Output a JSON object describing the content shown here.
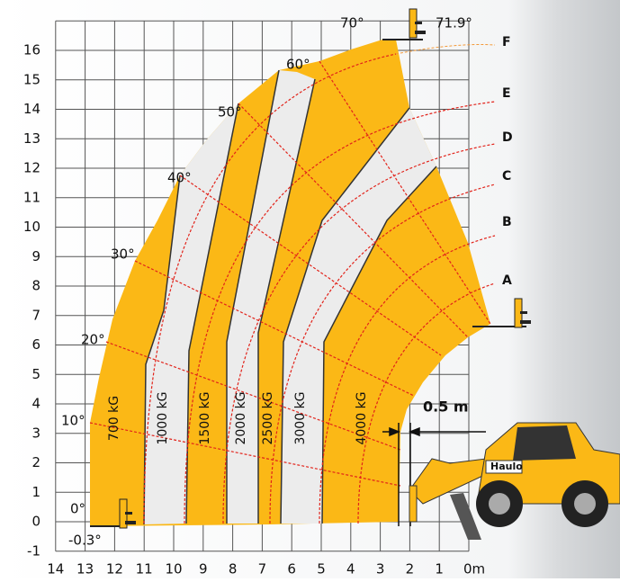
{
  "y_axis": {
    "labels": [
      "16",
      "15",
      "14",
      "13",
      "12",
      "11",
      "10",
      "9",
      "8",
      "7",
      "6",
      "5",
      "4",
      "3",
      "2",
      "1",
      "0",
      "-1"
    ]
  },
  "x_axis": {
    "labels": [
      "14",
      "13",
      "12",
      "11",
      "10",
      "9",
      "8",
      "7",
      "6",
      "5",
      "4",
      "3",
      "2",
      "1",
      "0m"
    ]
  },
  "angles": [
    "0°",
    "10°",
    "20°",
    "30°",
    "40°",
    "50°",
    "60°",
    "70°",
    "71.9°",
    "-0.3°"
  ],
  "loads": [
    "700 kG",
    "1000 kG",
    "1500 kG",
    "2000 kG",
    "2500 kG",
    "3000 kG",
    "4000 kG"
  ],
  "curves": [
    "A",
    "B",
    "C",
    "D",
    "E",
    "F"
  ],
  "dimension": "0.5 m",
  "vehicle": {
    "brand": "Haulo"
  }
}
